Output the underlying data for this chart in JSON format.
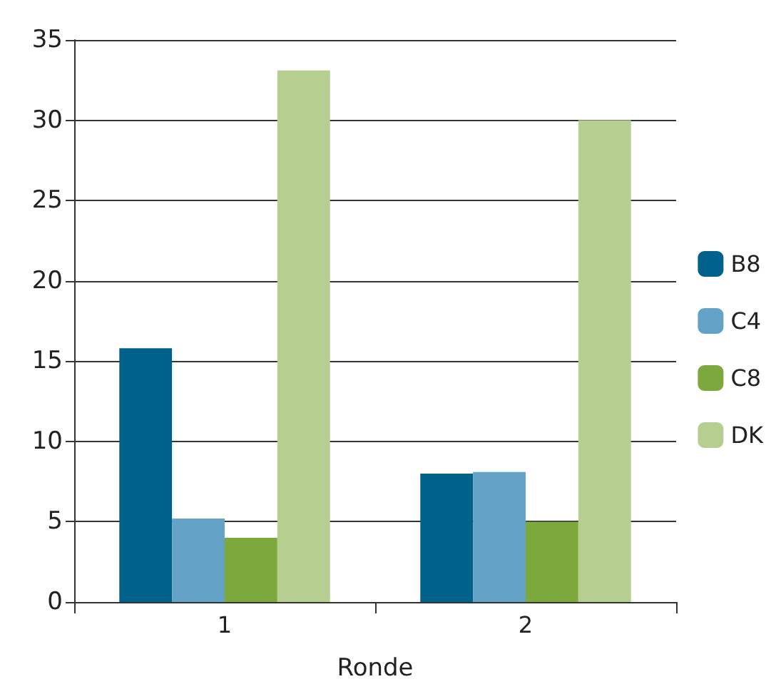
{
  "chart_data": {
    "type": "bar",
    "xlabel": "Ronde",
    "categories": [
      "1",
      "2"
    ],
    "series": [
      {
        "name": "B8",
        "color": "#00628b",
        "values": [
          15.8,
          8.0
        ]
      },
      {
        "name": "C4",
        "color": "#64a3c6",
        "values": [
          5.2,
          8.1
        ]
      },
      {
        "name": "C8",
        "color": "#7da83b",
        "values": [
          4.0,
          5.0
        ]
      },
      {
        "name": "DK",
        "color": "#b6cf91",
        "values": [
          33.1,
          30.0
        ]
      }
    ],
    "ylim": [
      0,
      35
    ],
    "yticks": [
      0,
      5,
      10,
      15,
      20,
      25,
      30,
      35
    ],
    "grid": "y",
    "legend": "right"
  }
}
